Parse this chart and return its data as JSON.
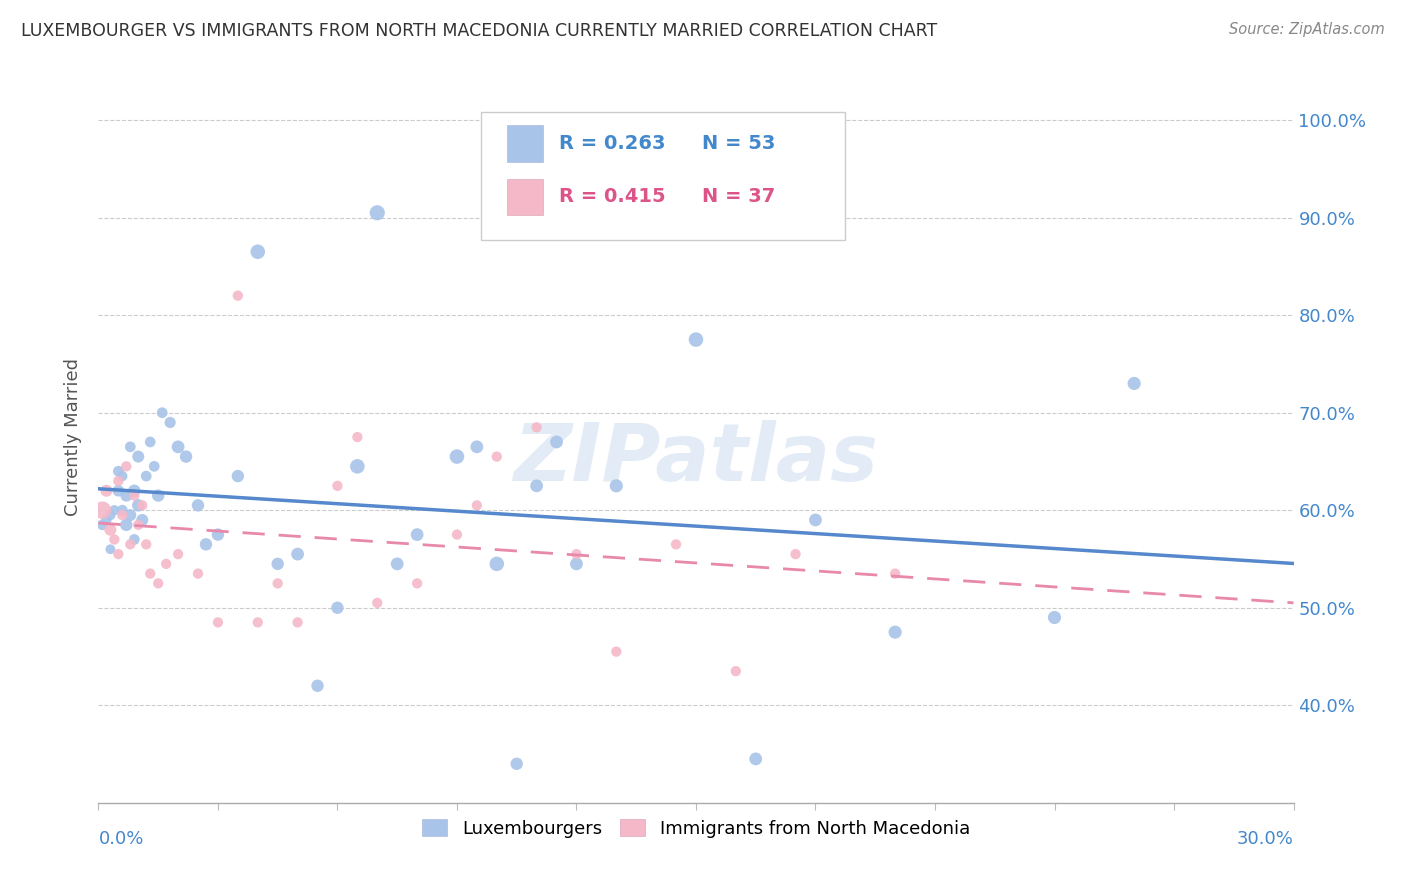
{
  "title": "LUXEMBOURGER VS IMMIGRANTS FROM NORTH MACEDONIA CURRENTLY MARRIED CORRELATION CHART",
  "source": "Source: ZipAtlas.com",
  "ylabel": "Currently Married",
  "yticks": [
    0.4,
    0.5,
    0.6,
    0.7,
    0.8,
    0.9,
    1.0
  ],
  "ytick_labels": [
    "40.0%",
    "50.0%",
    "60.0%",
    "70.0%",
    "80.0%",
    "90.0%",
    "100.0%"
  ],
  "xlim": [
    0.0,
    0.3
  ],
  "ylim": [
    0.3,
    1.05
  ],
  "color_blue": "#a8c4e8",
  "color_pink": "#f5b8c8",
  "color_blue_line": "#5588cc",
  "color_pink_line": "#e888aa",
  "color_blue_text": "#4488cc",
  "color_pink_text": "#dd5588",
  "watermark": "ZIPatlas",
  "lux_x": [
    0.001,
    0.002,
    0.003,
    0.003,
    0.004,
    0.005,
    0.005,
    0.006,
    0.006,
    0.007,
    0.007,
    0.008,
    0.008,
    0.009,
    0.009,
    0.01,
    0.01,
    0.011,
    0.012,
    0.013,
    0.014,
    0.015,
    0.016,
    0.018,
    0.02,
    0.022,
    0.025,
    0.027,
    0.03,
    0.035,
    0.04,
    0.045,
    0.05,
    0.055,
    0.06,
    0.065,
    0.07,
    0.075,
    0.08,
    0.09,
    0.095,
    0.1,
    0.105,
    0.11,
    0.115,
    0.12,
    0.13,
    0.15,
    0.165,
    0.18,
    0.2,
    0.24,
    0.26
  ],
  "lux_y": [
    0.585,
    0.59,
    0.595,
    0.56,
    0.6,
    0.62,
    0.64,
    0.6,
    0.635,
    0.585,
    0.615,
    0.595,
    0.665,
    0.62,
    0.57,
    0.655,
    0.605,
    0.59,
    0.635,
    0.67,
    0.645,
    0.615,
    0.7,
    0.69,
    0.665,
    0.655,
    0.605,
    0.565,
    0.575,
    0.635,
    0.865,
    0.545,
    0.555,
    0.42,
    0.5,
    0.645,
    0.905,
    0.545,
    0.575,
    0.655,
    0.665,
    0.545,
    0.34,
    0.625,
    0.67,
    0.545,
    0.625,
    0.775,
    0.345,
    0.59,
    0.475,
    0.49,
    0.73
  ],
  "lux_size": [
    60,
    55,
    55,
    50,
    55,
    70,
    60,
    60,
    55,
    80,
    75,
    75,
    60,
    80,
    60,
    75,
    80,
    75,
    60,
    60,
    60,
    80,
    60,
    65,
    85,
    80,
    80,
    80,
    80,
    80,
    110,
    80,
    85,
    80,
    80,
    110,
    120,
    85,
    85,
    110,
    85,
    110,
    80,
    85,
    85,
    85,
    90,
    110,
    85,
    85,
    90,
    90,
    90
  ],
  "mac_x": [
    0.001,
    0.002,
    0.003,
    0.004,
    0.005,
    0.005,
    0.006,
    0.007,
    0.008,
    0.009,
    0.01,
    0.011,
    0.012,
    0.013,
    0.015,
    0.017,
    0.02,
    0.025,
    0.03,
    0.035,
    0.04,
    0.045,
    0.05,
    0.06,
    0.065,
    0.07,
    0.08,
    0.09,
    0.095,
    0.1,
    0.11,
    0.12,
    0.13,
    0.145,
    0.16,
    0.175,
    0.2
  ],
  "mac_y": [
    0.6,
    0.62,
    0.58,
    0.57,
    0.63,
    0.555,
    0.595,
    0.645,
    0.565,
    0.615,
    0.585,
    0.605,
    0.565,
    0.535,
    0.525,
    0.545,
    0.555,
    0.535,
    0.485,
    0.82,
    0.485,
    0.525,
    0.485,
    0.625,
    0.675,
    0.505,
    0.525,
    0.575,
    0.605,
    0.655,
    0.685,
    0.555,
    0.455,
    0.565,
    0.435,
    0.555,
    0.535
  ],
  "mac_size": [
    160,
    75,
    75,
    55,
    55,
    55,
    55,
    55,
    55,
    55,
    55,
    55,
    55,
    55,
    55,
    55,
    55,
    55,
    55,
    55,
    55,
    55,
    55,
    55,
    55,
    55,
    55,
    55,
    55,
    55,
    55,
    55,
    55,
    55,
    55,
    55,
    55
  ]
}
